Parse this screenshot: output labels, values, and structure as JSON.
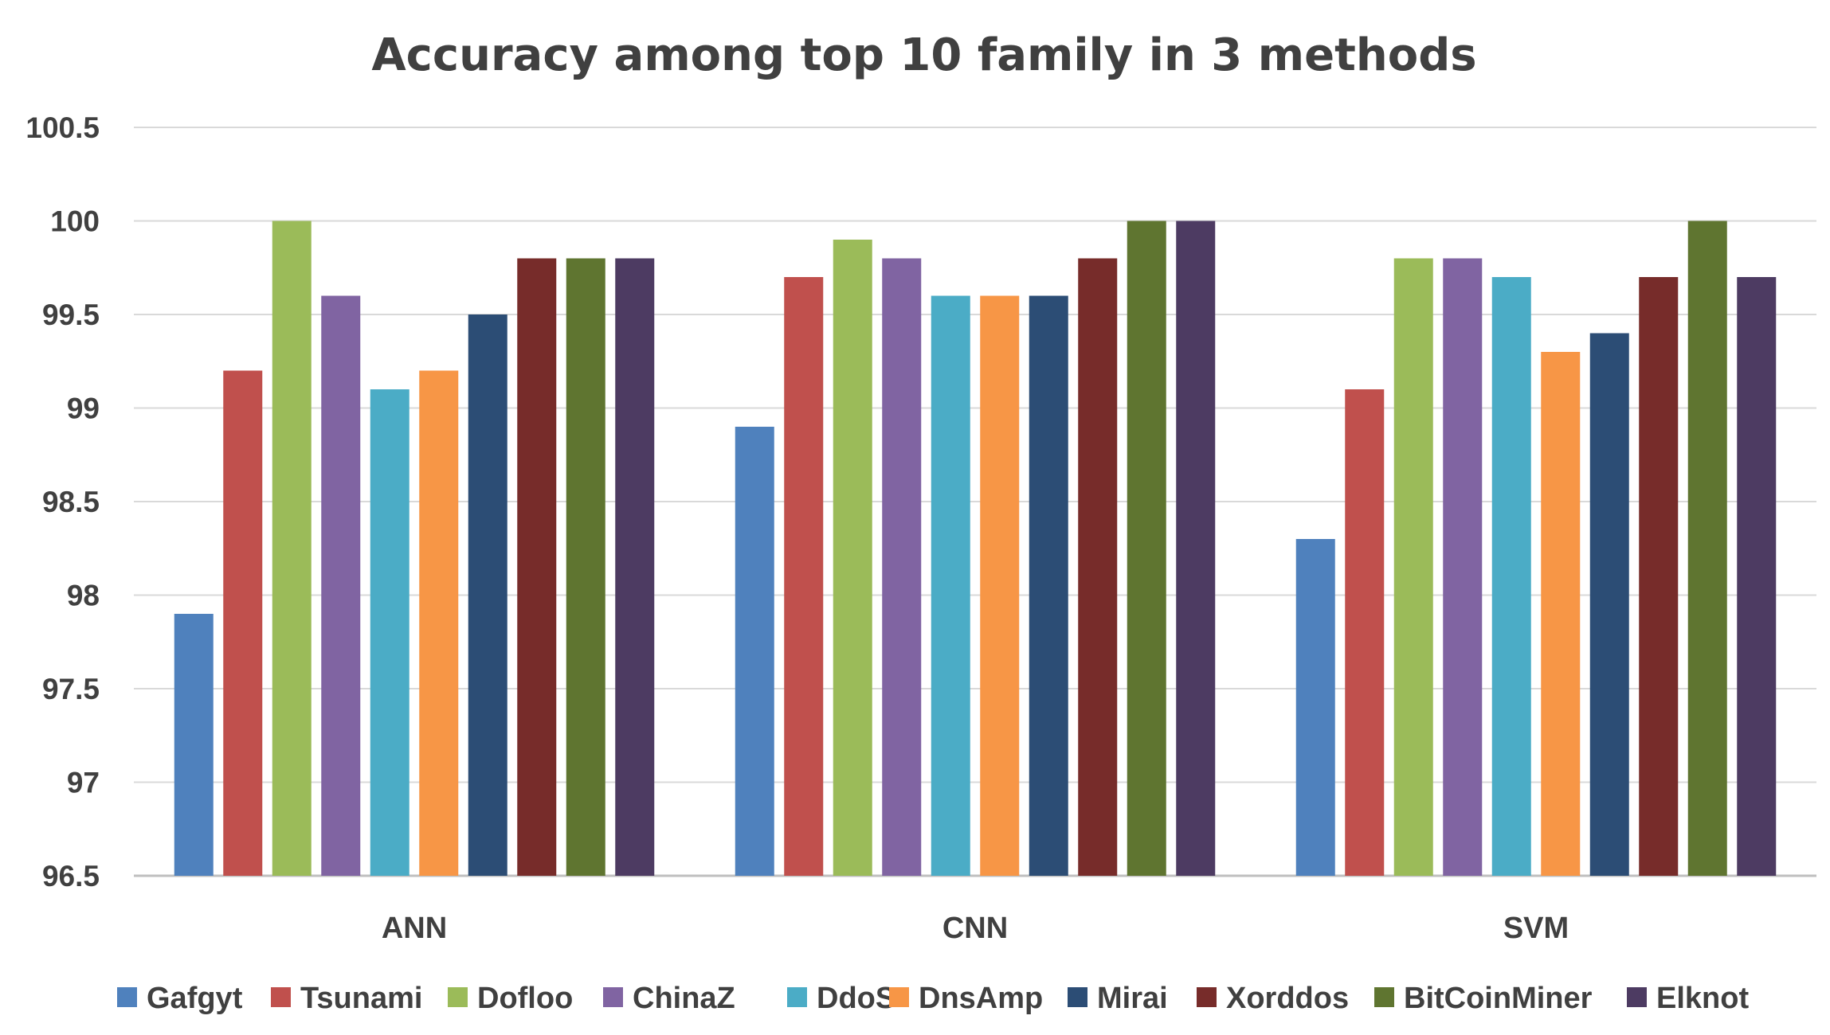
{
  "chart_data": {
    "type": "bar",
    "title": "Accuracy among top 10 family in 3 methods",
    "xlabel": "",
    "ylabel": "",
    "categories": [
      "ANN",
      "CNN",
      "SVM"
    ],
    "ylim": [
      96.5,
      100.5
    ],
    "yticks": [
      "96.5",
      "97",
      "97.5",
      "98",
      "98.5",
      "99",
      "99.5",
      "100",
      "100.5"
    ],
    "grid": true,
    "legend_position": "bottom",
    "series": [
      {
        "name": "Gafgyt",
        "color": "#4F81BD",
        "values": [
          97.9,
          98.9,
          98.3
        ]
      },
      {
        "name": "Tsunami",
        "color": "#C0504D",
        "values": [
          99.2,
          99.7,
          99.1
        ]
      },
      {
        "name": "Dofloo",
        "color": "#9BBB59",
        "values": [
          100.0,
          99.9,
          99.8
        ]
      },
      {
        "name": "ChinaZ",
        "color": "#8064A2",
        "values": [
          99.6,
          99.8,
          99.8
        ]
      },
      {
        "name": "DdoS",
        "color": "#4BACC6",
        "values": [
          99.1,
          99.6,
          99.7
        ]
      },
      {
        "name": "DnsAmp",
        "color": "#F79646",
        "values": [
          99.2,
          99.6,
          99.3
        ]
      },
      {
        "name": "Mirai",
        "color": "#2C4D75",
        "values": [
          99.5,
          99.6,
          99.4
        ]
      },
      {
        "name": "Xorddos",
        "color": "#772C2A",
        "values": [
          99.8,
          99.8,
          99.7
        ]
      },
      {
        "name": "BitCoinMiner",
        "color": "#5F7530",
        "values": [
          99.8,
          100.0,
          100.0
        ]
      },
      {
        "name": "Elknot",
        "color": "#4D3B62",
        "values": [
          99.8,
          100.0,
          99.7
        ]
      }
    ]
  }
}
